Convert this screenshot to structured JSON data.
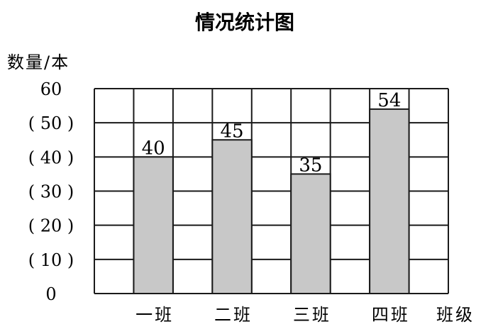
{
  "chart_data": {
    "type": "bar",
    "title": "情况统计图",
    "ylabel": "数量/本",
    "xlabel": "班级",
    "categories": [
      "一班",
      "二班",
      "三班",
      "四班"
    ],
    "values": [
      40,
      45,
      35,
      54
    ],
    "ylim": [
      0,
      60
    ],
    "yticks": [
      0,
      10,
      20,
      30,
      40,
      50,
      60
    ],
    "ytick_labels": [
      "0",
      "( 10 )",
      "( 20 )",
      "( 30 )",
      "( 40 )",
      "( 50 )",
      "60"
    ],
    "data_labels": [
      "40",
      "45",
      "35",
      "54"
    ],
    "grid": true,
    "bar_color": "#c8c8c8",
    "line_color": "#1a1a1a"
  }
}
